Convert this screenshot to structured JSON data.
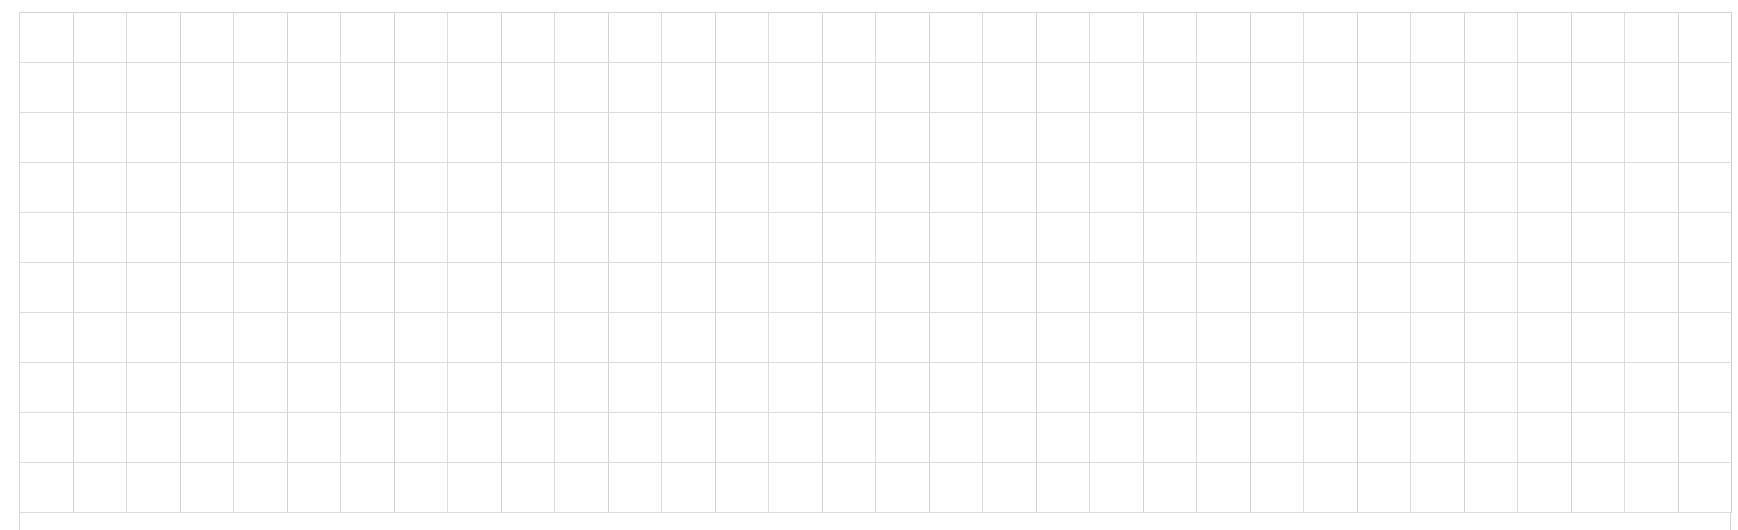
{
  "grid": {
    "rows": 10,
    "columns": 32,
    "cells": []
  },
  "colors": {
    "background": "#ffffff",
    "gridline": "#dcdcdc"
  }
}
